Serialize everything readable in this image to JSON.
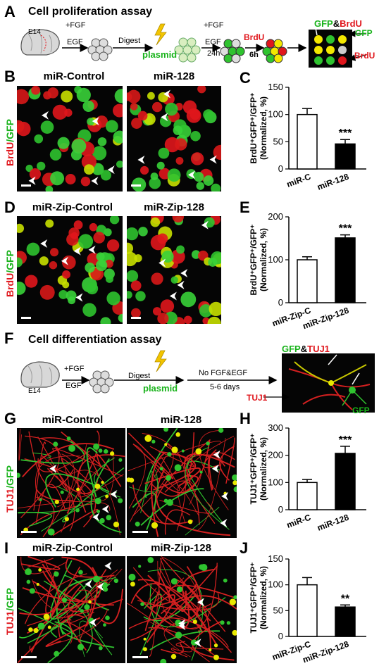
{
  "panels": {
    "A": {
      "letter": "A",
      "title": "Cell proliferation assay",
      "e14": "E14",
      "fgf1": "+FGF",
      "egf1": "EGF",
      "digest": "Digest",
      "plasmid": "plasmid",
      "fgf2": "+FGF",
      "egf2": "EGF",
      "t24": "24h",
      "brdu": "BrdU",
      "t6": "6h",
      "legend_gfp": "GFP",
      "legend_amp": "&",
      "legend_brdu": "BrdU",
      "arrow_gfp": "GFP",
      "arrow_brdu": "BrdU"
    },
    "B": {
      "letter": "B",
      "left": "miR-Control",
      "right": "miR-128",
      "ylabel_a": "BrdU",
      "ylabel_b": "/GFP"
    },
    "D": {
      "letter": "D",
      "left": "miR-Zip-Control",
      "right": "miR-Zip-128",
      "ylabel_a": "BrdU",
      "ylabel_b": "/GFP"
    },
    "F": {
      "letter": "F",
      "title": "Cell differentiation assay",
      "e14": "E14",
      "fgf": "+FGF",
      "egf": "EGF",
      "digest": "Digest",
      "plasmid": "plasmid",
      "nofgf": "No FGF&EGF",
      "days": "5-6 days",
      "legend_gfp": "GFP",
      "legend_amp": "&",
      "legend_tuj1": "TUJ1",
      "arrow_tuj1": "TUJ1",
      "arrow_gfp": "GFP"
    },
    "G": {
      "letter": "G",
      "left": "miR-Control",
      "right": "miR-128",
      "ylabel_a": "TUJ1",
      "ylabel_b": "/GFP"
    },
    "I": {
      "letter": "I",
      "left": "miR-Zip-Control",
      "right": "miR-Zip-128",
      "ylabel_a": "TUJ1",
      "ylabel_b": "/GFP"
    }
  },
  "chart_data": [
    {
      "panel": "C",
      "type": "bar",
      "categories": [
        "miR-C",
        "miR-128"
      ],
      "values": [
        100,
        46
      ],
      "errors": [
        11,
        8
      ],
      "ylabel_top": "BrdU⁺GFP⁺/GFP⁺",
      "ylabel_bottom": "(Normalized, %)",
      "ylim": [
        0,
        150
      ],
      "yticks": [
        0,
        50,
        100,
        150
      ],
      "significance": [
        "",
        "***"
      ],
      "colors": [
        "#ffffff",
        "#000000"
      ]
    },
    {
      "panel": "E",
      "type": "bar",
      "categories": [
        "miR-Zip-C",
        "miR-Zip-128"
      ],
      "values": [
        100,
        151
      ],
      "errors": [
        7,
        7
      ],
      "ylabel_top": "BrdU⁺GFP⁺/GFP⁺",
      "ylabel_bottom": "(Normalized, %)",
      "ylim": [
        0,
        200
      ],
      "yticks": [
        0,
        100,
        200
      ],
      "significance": [
        "",
        "***"
      ],
      "colors": [
        "#ffffff",
        "#000000"
      ]
    },
    {
      "panel": "H",
      "type": "bar",
      "categories": [
        "miR-C",
        "miR-128"
      ],
      "values": [
        100,
        207
      ],
      "errors": [
        11,
        26
      ],
      "ylabel_top": "TUJ1⁺GFP⁺/GFP⁺",
      "ylabel_bottom": "(Normalized, %)",
      "ylim": [
        0,
        300
      ],
      "yticks": [
        0,
        100,
        200,
        300
      ],
      "significance": [
        "",
        "***"
      ],
      "colors": [
        "#ffffff",
        "#000000"
      ]
    },
    {
      "panel": "J",
      "type": "bar",
      "categories": [
        "miR-Zip-C",
        "miR-Zip-128"
      ],
      "values": [
        100,
        57
      ],
      "errors": [
        14,
        4
      ],
      "ylabel_top": "TUJ1⁺GFP⁺/GFP⁺",
      "ylabel_bottom": "(Normalized, %)",
      "ylim": [
        0,
        150
      ],
      "yticks": [
        0,
        50,
        100,
        150
      ],
      "significance": [
        "",
        "**"
      ],
      "colors": [
        "#ffffff",
        "#000000"
      ]
    }
  ]
}
